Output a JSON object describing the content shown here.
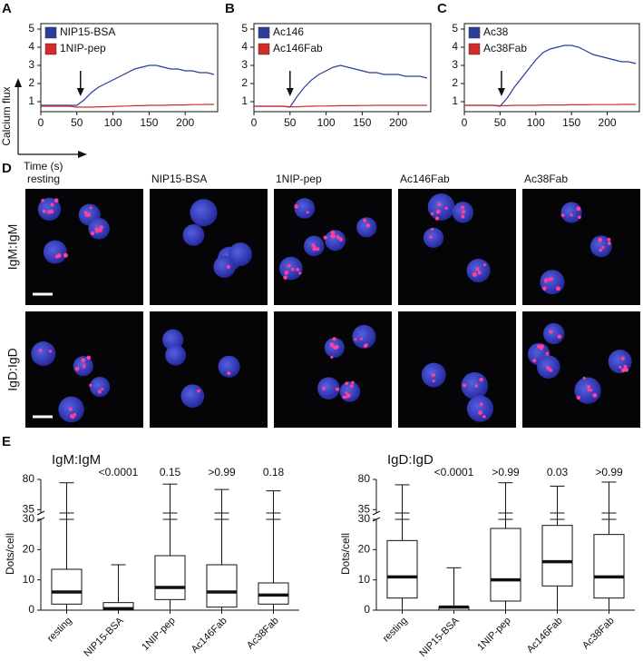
{
  "chart_data": [
    {
      "type": "line",
      "label": "A",
      "x": [
        0,
        10,
        20,
        30,
        40,
        50,
        60,
        70,
        80,
        90,
        100,
        110,
        120,
        130,
        140,
        150,
        160,
        170,
        180,
        190,
        200,
        210,
        220,
        230,
        240
      ],
      "series": [
        {
          "name": "NIP15-BSA",
          "color": "#2b3d99",
          "values": [
            0.8,
            0.8,
            0.8,
            0.8,
            0.8,
            0.8,
            1.1,
            1.5,
            1.8,
            2.0,
            2.2,
            2.4,
            2.6,
            2.8,
            2.9,
            3.0,
            3.0,
            2.9,
            2.8,
            2.8,
            2.7,
            2.7,
            2.6,
            2.6,
            2.5
          ]
        },
        {
          "name": "1NIP-pep",
          "color": "#d42a2a",
          "values": [
            0.75,
            0.75,
            0.75,
            0.75,
            0.75,
            0.7,
            0.7,
            0.7,
            0.72,
            0.72,
            0.74,
            0.75,
            0.76,
            0.78,
            0.78,
            0.8,
            0.8,
            0.8,
            0.82,
            0.82,
            0.82,
            0.84,
            0.84,
            0.85,
            0.85
          ]
        }
      ],
      "xlim": [
        0,
        245
      ],
      "ylim": [
        0.45,
        5.3
      ],
      "xticks": [
        0,
        50,
        100,
        150,
        200
      ],
      "yticks": [
        1,
        2,
        3,
        4,
        5
      ],
      "arrow_x": 55
    },
    {
      "type": "line",
      "label": "B",
      "x": [
        0,
        10,
        20,
        30,
        40,
        50,
        60,
        70,
        80,
        90,
        100,
        110,
        120,
        130,
        140,
        150,
        160,
        170,
        180,
        190,
        200,
        210,
        220,
        230,
        240
      ],
      "series": [
        {
          "name": "Ac146",
          "color": "#2b3d99",
          "values": [
            0.75,
            0.75,
            0.75,
            0.75,
            0.75,
            0.7,
            1.3,
            1.8,
            2.2,
            2.5,
            2.7,
            2.9,
            3.0,
            2.9,
            2.8,
            2.7,
            2.6,
            2.6,
            2.5,
            2.5,
            2.5,
            2.4,
            2.4,
            2.4,
            2.3
          ]
        },
        {
          "name": "Ac146Fab",
          "color": "#d42a2a",
          "values": [
            0.75,
            0.75,
            0.75,
            0.75,
            0.75,
            0.72,
            0.72,
            0.74,
            0.75,
            0.76,
            0.76,
            0.77,
            0.78,
            0.78,
            0.78,
            0.79,
            0.79,
            0.8,
            0.8,
            0.8,
            0.8,
            0.8,
            0.8,
            0.8,
            0.8
          ]
        }
      ],
      "xlim": [
        0,
        245
      ],
      "ylim": [
        0.45,
        5.3
      ],
      "xticks": [
        0,
        50,
        100,
        150,
        200
      ],
      "yticks": [
        1,
        2,
        3,
        4,
        5
      ],
      "arrow_x": 50
    },
    {
      "type": "line",
      "label": "C",
      "x": [
        0,
        10,
        20,
        30,
        40,
        50,
        60,
        70,
        80,
        90,
        100,
        110,
        120,
        130,
        140,
        150,
        160,
        170,
        180,
        190,
        200,
        210,
        220,
        230,
        240
      ],
      "series": [
        {
          "name": "Ac38",
          "color": "#2b3d99",
          "values": [
            0.8,
            0.8,
            0.8,
            0.8,
            0.8,
            0.75,
            1.2,
            1.8,
            2.3,
            2.8,
            3.3,
            3.7,
            3.9,
            4.0,
            4.1,
            4.1,
            4.0,
            3.8,
            3.6,
            3.5,
            3.4,
            3.3,
            3.2,
            3.2,
            3.1
          ]
        },
        {
          "name": "Ac38Fab",
          "color": "#d42a2a",
          "values": [
            0.8,
            0.8,
            0.8,
            0.8,
            0.8,
            0.78,
            0.78,
            0.8,
            0.8,
            0.8,
            0.8,
            0.82,
            0.82,
            0.82,
            0.82,
            0.83,
            0.83,
            0.83,
            0.84,
            0.84,
            0.84,
            0.84,
            0.85,
            0.85,
            0.85
          ]
        }
      ],
      "xlim": [
        0,
        245
      ],
      "ylim": [
        0.45,
        5.3
      ],
      "xticks": [
        0,
        50,
        100,
        150,
        200
      ],
      "yticks": [
        1,
        2,
        3,
        4,
        5
      ],
      "arrow_x": 52
    },
    {
      "type": "box",
      "label": "E",
      "title": "IgM:IgM",
      "y_label": "Dots/cell",
      "categories": [
        "resting",
        "NIP15-BSA",
        "1NIP-pep",
        "Ac146Fab",
        "Ac38Fab"
      ],
      "values": [
        [
          0,
          2,
          6,
          13.5,
          75
        ],
        [
          0,
          0,
          0.5,
          2.5,
          15
        ],
        [
          0,
          3.5,
          7.5,
          18,
          73
        ],
        [
          0,
          1,
          6,
          15,
          65
        ],
        [
          0,
          2,
          5,
          9,
          63
        ]
      ],
      "p_values": [
        null,
        "<0.0001",
        "0.15",
        ">0.99",
        "0.18"
      ],
      "ylim": [
        0,
        30
      ],
      "yticks": [
        0,
        10,
        20,
        30
      ],
      "ylim_upper": [
        30,
        80
      ],
      "yticks_upper": [
        35,
        80
      ]
    },
    {
      "type": "box",
      "title": "IgD:IgD",
      "y_label": "Dots/cell",
      "categories": [
        "resting",
        "NIP15-BSA",
        "1NIP-pep",
        "Ac146Fab",
        "Ac38Fab"
      ],
      "values": [
        [
          0,
          4,
          11,
          23,
          72
        ],
        [
          0,
          0,
          1,
          1,
          14
        ],
        [
          0,
          3,
          10,
          27,
          75
        ],
        [
          0,
          8,
          16,
          28,
          70
        ],
        [
          0,
          4,
          11,
          25,
          76
        ]
      ],
      "p_values": [
        null,
        "<0.0001",
        ">0.99",
        "0.03",
        ">0.99"
      ],
      "ylim": [
        0,
        30
      ],
      "yticks": [
        0,
        10,
        20,
        30
      ],
      "ylim_upper": [
        30,
        80
      ],
      "yticks_upper": [
        35,
        80
      ]
    }
  ],
  "axis_key": {
    "y_label": "Calcium flux",
    "x_label": "Time (s)"
  },
  "panel_d": {
    "label": "D",
    "columns": [
      "resting",
      "NIP15-BSA",
      "1NIP-pep",
      "Ac146Fab",
      "Ac38Fab"
    ],
    "rows": [
      "IgM:IgM",
      "IgD:IgD"
    ]
  }
}
